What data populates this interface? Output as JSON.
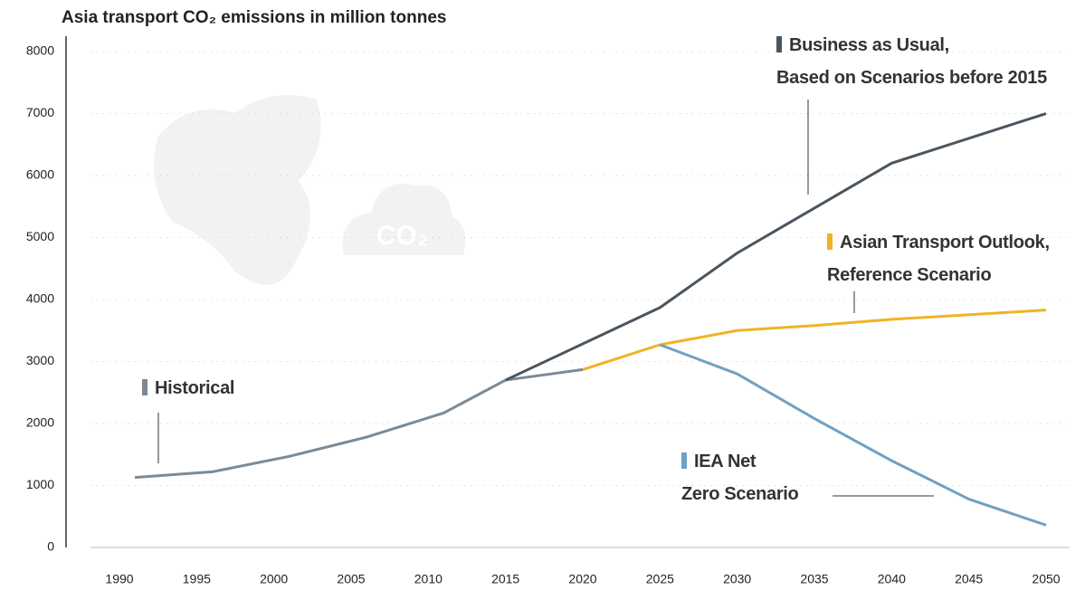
{
  "chart_data": {
    "type": "line",
    "title": "Asia transport CO₂ emissions in million tonnes",
    "watermark": "CO₂",
    "xlim": [
      1990,
      2050
    ],
    "xticks": [
      1990,
      1995,
      2000,
      2005,
      2010,
      2015,
      2020,
      2025,
      2030,
      2035,
      2040,
      2045,
      2050
    ],
    "ylim": [
      0,
      8000
    ],
    "yticks": [
      0,
      1000,
      2000,
      3000,
      4000,
      5000,
      6000,
      7000,
      8000
    ],
    "grid": true,
    "series": [
      {
        "name": "Historical",
        "color": "#7b8a96",
        "x": [
          1991,
          1996,
          2001,
          2006,
          2011,
          2015,
          2020
        ],
        "values": [
          1130,
          1220,
          1470,
          1780,
          2170,
          2700,
          2870
        ]
      },
      {
        "name": "Business as Usual,\nBased on Scenarios before 2015",
        "color": "#4a5560",
        "x": [
          2015,
          2025,
          2030,
          2040,
          2050
        ],
        "values": [
          2700,
          3870,
          4750,
          6200,
          7000
        ]
      },
      {
        "name": "Asian Transport Outlook,\nReference Scenario",
        "color": "#f0b323",
        "x": [
          2020,
          2025,
          2030,
          2035,
          2040,
          2050
        ],
        "values": [
          2870,
          3270,
          3500,
          3580,
          3680,
          3830
        ]
      },
      {
        "name": "IEA Net\nZero Scenario",
        "color": "#6fa1c4",
        "x": [
          2025,
          2030,
          2035,
          2040,
          2045,
          2050
        ],
        "values": [
          3270,
          2800,
          2080,
          1400,
          780,
          360
        ]
      }
    ]
  }
}
